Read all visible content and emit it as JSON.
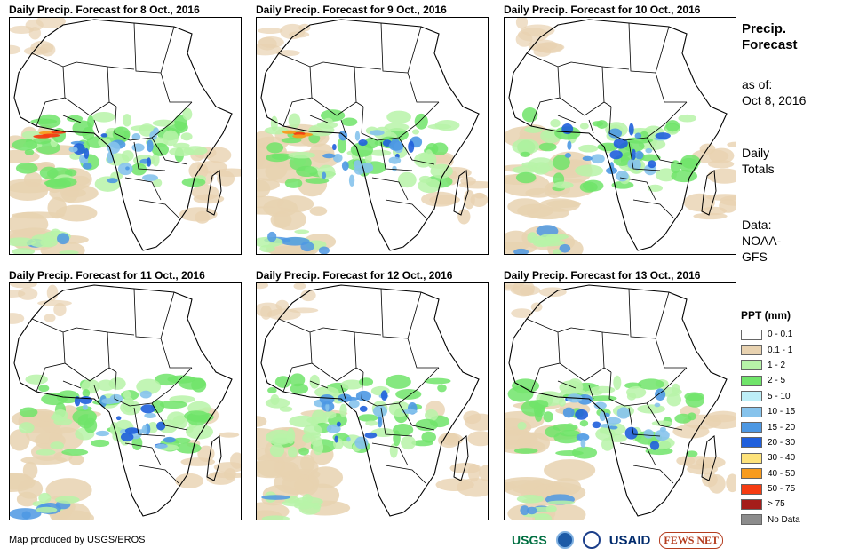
{
  "panels": [
    {
      "title": "Daily Precip. Forecast for 8 Oct., 2016"
    },
    {
      "title": "Daily Precip. Forecast for 9 Oct., 2016"
    },
    {
      "title": "Daily Precip. Forecast for 10 Oct., 2016"
    },
    {
      "title": "Daily Precip. Forecast for 11 Oct., 2016"
    },
    {
      "title": "Daily Precip. Forecast for 12 Oct., 2016"
    },
    {
      "title": "Daily Precip. Forecast for 13 Oct., 2016"
    }
  ],
  "sidebar": {
    "title_line1": "Precip.",
    "title_line2": "Forecast",
    "asof_line1": "as of:",
    "asof_line2": "Oct 8, 2016",
    "totals_line1": "Daily",
    "totals_line2": "Totals",
    "data_line1": "Data:",
    "data_line2": "NOAA-",
    "data_line3": "GFS"
  },
  "legend": {
    "title": "PPT (mm)",
    "items": [
      {
        "label": "0 - 0.1",
        "color": "#ffffff"
      },
      {
        "label": "0.1 - 1",
        "color": "#e8d2b0"
      },
      {
        "label": "1 - 2",
        "color": "#b7f3a8"
      },
      {
        "label": "2 - 5",
        "color": "#70e46a"
      },
      {
        "label": "5 - 10",
        "color": "#bdeef7"
      },
      {
        "label": "10 - 15",
        "color": "#86c3ec"
      },
      {
        "label": "15 - 20",
        "color": "#4d98e3"
      },
      {
        "label": "20 - 30",
        "color": "#1f5fdc"
      },
      {
        "label": "30 - 40",
        "color": "#fde27a"
      },
      {
        "label": "40 - 50",
        "color": "#f79b1e"
      },
      {
        "label": "50 - 75",
        "color": "#f53c12"
      },
      {
        "label": "> 75",
        "color": "#a51d1a"
      },
      {
        "label": "No Data",
        "color": "#8c8c8c"
      }
    ]
  },
  "credit": "Map produced by USGS/EROS",
  "logos": {
    "usgs": "USGS",
    "usaid": "USAID",
    "fews": "FEWS NET"
  }
}
